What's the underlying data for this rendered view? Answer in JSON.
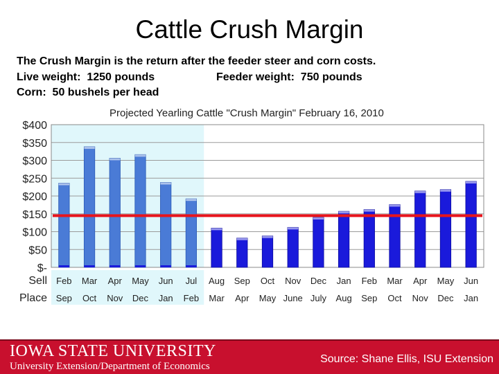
{
  "slide": {
    "title": "Cattle Crush Margin",
    "line1": "The Crush Margin is the return after the feeder steer and corn costs.",
    "line2a": "Live weight:  1250 pounds",
    "line2b": "Feeder weight:  750 pounds",
    "line3": "Corn:  50 bushels per head"
  },
  "footer": {
    "brand": "IOWA STATE UNIVERSITY",
    "dept": "University Extension/Department of Economics",
    "source": "Source: Shane Ellis, ISU Extension"
  },
  "colors": {
    "historical_bar": "#4a7bd6",
    "projected_bar": "#1a1adb",
    "highlight_bg": "#e0f7fb",
    "breakeven_line": "#e8141c",
    "footer": "#c8102e"
  },
  "chart_data": {
    "type": "bar",
    "title": "Projected Yearling Cattle \"Crush Margin\" February 16, 2010",
    "row_labels": [
      "Sell",
      "Place"
    ],
    "categories": [
      "Feb",
      "Mar",
      "Apr",
      "May",
      "Jun",
      "Jul",
      "Aug",
      "Sep",
      "Oct",
      "Nov",
      "Dec",
      "Jan",
      "Feb",
      "Mar",
      "Apr",
      "May",
      "Jun"
    ],
    "place_labels": [
      "Sep",
      "Oct",
      "Nov",
      "Dec",
      "Jan",
      "Feb",
      "Mar",
      "Apr",
      "May",
      "June",
      "July",
      "Aug",
      "Sep",
      "Oct",
      "Nov",
      "Dec",
      "Jan"
    ],
    "values": [
      236,
      338,
      306,
      316,
      238,
      192,
      110,
      82,
      88,
      112,
      140,
      157,
      162,
      176,
      214,
      218,
      241
    ],
    "historical_count": 6,
    "reference_line": 145,
    "ylim": [
      0,
      400
    ],
    "yticks": [
      0,
      50,
      100,
      150,
      200,
      250,
      300,
      350,
      400
    ],
    "ytick_labels": [
      "$-",
      "$50",
      "$100",
      "$150",
      "$200",
      "$250",
      "$300",
      "$350",
      "$400"
    ],
    "grid": true
  }
}
